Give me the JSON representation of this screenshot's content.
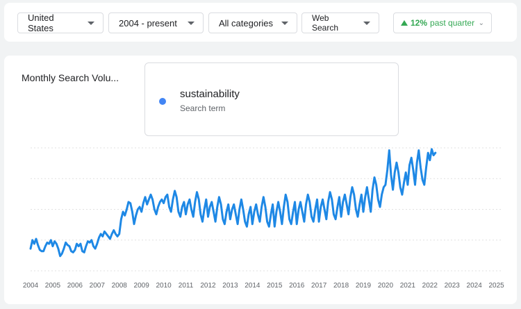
{
  "filters": {
    "region": "United States",
    "time_range": "2004 - present",
    "category": "All categories",
    "search_type": "Web Search"
  },
  "trend": {
    "percent": "12%",
    "label": "past quarter"
  },
  "chart": {
    "title": "Monthly Search Volu..."
  },
  "legend": {
    "term": "sustainability",
    "subtitle": "Search term"
  },
  "chart_data": {
    "type": "line",
    "title": "Monthly Search Volu...",
    "xlabel": "",
    "ylabel": "",
    "x_ticks": [
      "2004",
      "2005",
      "2006",
      "2007",
      "2008",
      "2009",
      "2010",
      "2011",
      "2012",
      "2013",
      "2014",
      "2015",
      "2016",
      "2017",
      "2018",
      "2019",
      "2020",
      "2021",
      "2022",
      "2023",
      "2024",
      "2025"
    ],
    "xlim": [
      2004,
      2025.2
    ],
    "ylim": [
      0,
      100
    ],
    "grid": true,
    "color": "#1e88e5",
    "series": [
      {
        "name": "sustainability",
        "x_start": 2004,
        "x_step_months": 1,
        "values": [
          18,
          25,
          22,
          26,
          21,
          17,
          16,
          16,
          20,
          23,
          22,
          25,
          20,
          24,
          22,
          18,
          12,
          14,
          18,
          23,
          21,
          20,
          16,
          15,
          17,
          22,
          20,
          22,
          16,
          15,
          20,
          24,
          23,
          25,
          20,
          18,
          22,
          27,
          30,
          28,
          32,
          30,
          28,
          26,
          30,
          33,
          30,
          28,
          30,
          42,
          48,
          45,
          50,
          56,
          55,
          48,
          38,
          45,
          50,
          52,
          48,
          55,
          60,
          54,
          58,
          62,
          58,
          50,
          46,
          52,
          56,
          58,
          55,
          60,
          62,
          52,
          48,
          58,
          65,
          60,
          48,
          44,
          52,
          56,
          46,
          54,
          58,
          50,
          44,
          56,
          64,
          58,
          46,
          40,
          50,
          58,
          44,
          52,
          56,
          48,
          40,
          52,
          60,
          54,
          42,
          38,
          48,
          54,
          42,
          50,
          54,
          46,
          38,
          50,
          58,
          50,
          40,
          36,
          46,
          52,
          38,
          48,
          54,
          46,
          40,
          52,
          60,
          52,
          40,
          36,
          46,
          54,
          36,
          48,
          56,
          48,
          38,
          52,
          62,
          56,
          42,
          38,
          48,
          56,
          38,
          50,
          56,
          48,
          40,
          54,
          62,
          56,
          44,
          40,
          50,
          58,
          40,
          52,
          58,
          50,
          42,
          56,
          64,
          58,
          46,
          42,
          52,
          60,
          44,
          56,
          62,
          54,
          46,
          60,
          68,
          62,
          50,
          44,
          54,
          62,
          48,
          60,
          68,
          58,
          48,
          66,
          76,
          70,
          58,
          52,
          62,
          68,
          70,
          82,
          98,
          78,
          66,
          80,
          88,
          80,
          68,
          62,
          72,
          80,
          70,
          86,
          92,
          82,
          70,
          88,
          98,
          84,
          74,
          70,
          84,
          96,
          90,
          99,
          94,
          96
        ]
      }
    ]
  }
}
